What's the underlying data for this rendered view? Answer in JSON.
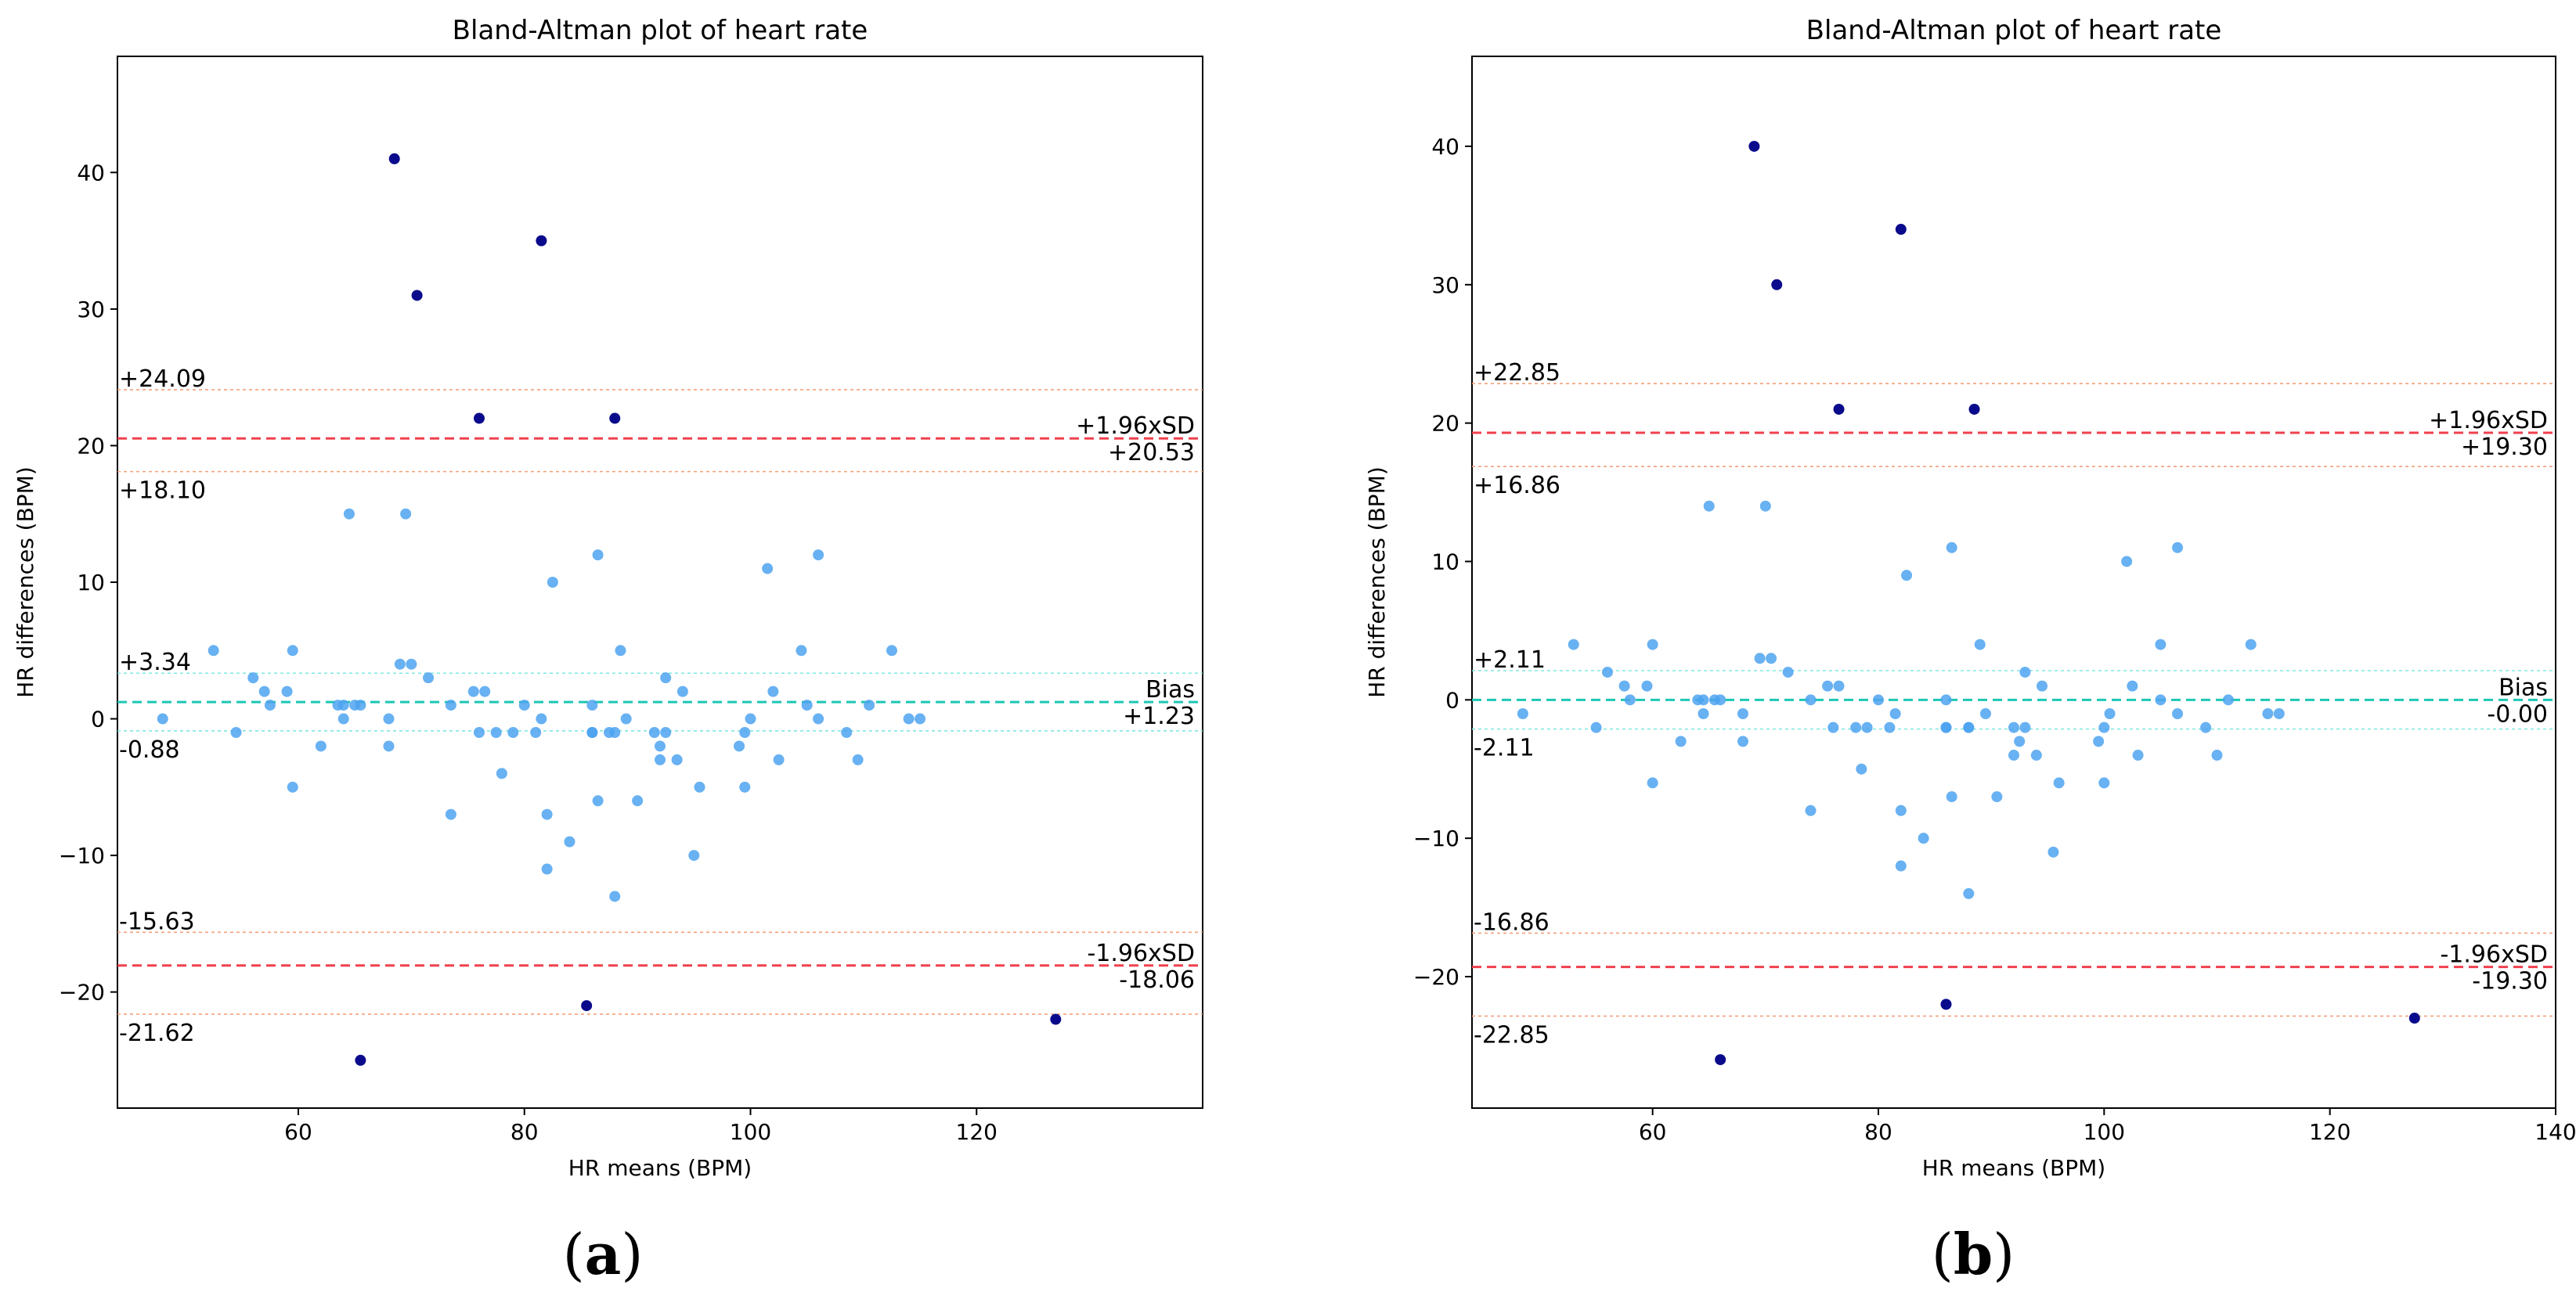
{
  "captions": [
    {
      "open": "(",
      "letter": "a",
      "close": ")"
    },
    {
      "open": "(",
      "letter": "b",
      "close": ")"
    }
  ],
  "colors": {
    "point": "#4da3f0",
    "outlier": "#0a0a8c",
    "sd": "#f0404e",
    "ci_sd": "#f4a07a",
    "bias": "#1cc7b4",
    "ci_bias": "#7ee8e0"
  },
  "chart_data": [
    {
      "type": "scatter",
      "title": "Bland-Altman plot of heart rate",
      "xlabel": "HR means (BPM)",
      "ylabel": "HR differences (BPM)",
      "xlim": [
        44,
        140
      ],
      "ylim": [
        -28.5,
        48.5
      ],
      "xticks": [
        60,
        80,
        100,
        120
      ],
      "yticks": [
        -20,
        -10,
        0,
        10,
        20,
        30,
        40
      ],
      "lines": {
        "upper_sd": {
          "value": 20.53,
          "label": "+1.96xSD",
          "value_label": "+20.53"
        },
        "upper_ci_high": {
          "value": 24.09,
          "label": "+24.09"
        },
        "upper_ci_low": {
          "value": 18.1,
          "label": "+18.10"
        },
        "bias": {
          "value": 1.23,
          "label": "Bias",
          "value_label": "+1.23"
        },
        "bias_ci_high": {
          "value": 3.34,
          "label": "+3.34"
        },
        "bias_ci_low": {
          "value": -0.88,
          "label": "-0.88"
        },
        "lower_sd": {
          "value": -18.06,
          "label": "-1.96xSD",
          "value_label": "-18.06"
        },
        "lower_ci_high": {
          "value": -15.63,
          "label": "-15.63"
        },
        "lower_ci_low": {
          "value": -21.62,
          "label": "-21.62"
        }
      },
      "points": [
        [
          48,
          0
        ],
        [
          52.5,
          5
        ],
        [
          54.5,
          -1
        ],
        [
          56,
          3
        ],
        [
          57,
          2
        ],
        [
          57.5,
          1
        ],
        [
          59,
          2
        ],
        [
          59.5,
          5
        ],
        [
          59.5,
          -5
        ],
        [
          62,
          -2
        ],
        [
          63.5,
          1
        ],
        [
          64,
          1
        ],
        [
          64,
          0
        ],
        [
          64.5,
          15
        ],
        [
          65,
          1
        ],
        [
          65.5,
          1
        ],
        [
          68,
          0
        ],
        [
          68,
          -2
        ],
        [
          69,
          4
        ],
        [
          69.5,
          15
        ],
        [
          70,
          4
        ],
        [
          71.5,
          3
        ],
        [
          73.5,
          1
        ],
        [
          73.5,
          -7
        ],
        [
          75.5,
          2
        ],
        [
          76,
          -1
        ],
        [
          76.5,
          2
        ],
        [
          77.5,
          -1
        ],
        [
          78,
          -4
        ],
        [
          79,
          -1
        ],
        [
          80,
          1
        ],
        [
          81,
          -1
        ],
        [
          81.5,
          0
        ],
        [
          82,
          -7
        ],
        [
          82,
          -11
        ],
        [
          82.5,
          10
        ],
        [
          84,
          -9
        ],
        [
          86,
          1
        ],
        [
          86,
          -1
        ],
        [
          86,
          -1
        ],
        [
          86.5,
          12
        ],
        [
          86.5,
          -6
        ],
        [
          87.5,
          -1
        ],
        [
          88,
          -1
        ],
        [
          88.5,
          5
        ],
        [
          89,
          0
        ],
        [
          88,
          -13
        ],
        [
          90,
          -6
        ],
        [
          91.5,
          -1
        ],
        [
          92,
          -2
        ],
        [
          92,
          -3
        ],
        [
          92.5,
          3
        ],
        [
          92.5,
          -1
        ],
        [
          93.5,
          -3
        ],
        [
          94,
          2
        ],
        [
          95,
          -10
        ],
        [
          95.5,
          -5
        ],
        [
          99,
          -2
        ],
        [
          99.5,
          -5
        ],
        [
          99.5,
          -1
        ],
        [
          100,
          0
        ],
        [
          101.5,
          11
        ],
        [
          102,
          2
        ],
        [
          102.5,
          -3
        ],
        [
          104.5,
          5
        ],
        [
          105,
          1
        ],
        [
          106,
          12
        ],
        [
          106,
          0
        ],
        [
          108.5,
          -1
        ],
        [
          109.5,
          -3
        ],
        [
          110.5,
          1
        ],
        [
          112.5,
          5
        ],
        [
          114,
          0
        ],
        [
          115,
          0
        ]
      ],
      "outliers": [
        [
          68.5,
          41
        ],
        [
          70.5,
          31
        ],
        [
          81.5,
          35
        ],
        [
          76,
          22
        ],
        [
          88,
          22
        ],
        [
          85.5,
          -21
        ],
        [
          65.5,
          -25
        ],
        [
          127,
          -22
        ]
      ]
    },
    {
      "type": "scatter",
      "title": "Bland-Altman plot of heart rate",
      "xlabel": "HR means (BPM)",
      "ylabel": "HR differences (BPM)",
      "xlim": [
        44,
        140
      ],
      "ylim": [
        -29.5,
        46.5
      ],
      "xticks": [
        60,
        80,
        100,
        120,
        140
      ],
      "yticks": [
        -20,
        -10,
        0,
        10,
        20,
        30,
        40
      ],
      "lines": {
        "upper_sd": {
          "value": 19.3,
          "label": "+1.96xSD",
          "value_label": "+19.30"
        },
        "upper_ci_high": {
          "value": 22.85,
          "label": "+22.85"
        },
        "upper_ci_low": {
          "value": 16.86,
          "label": "+16.86"
        },
        "bias": {
          "value": 0.0,
          "label": "Bias",
          "value_label": "-0.00"
        },
        "bias_ci_high": {
          "value": 2.11,
          "label": "+2.11"
        },
        "bias_ci_low": {
          "value": -2.11,
          "label": "-2.11"
        },
        "lower_sd": {
          "value": -19.3,
          "label": "-1.96xSD",
          "value_label": "-19.30"
        },
        "lower_ci_high": {
          "value": -16.86,
          "label": "-16.86"
        },
        "lower_ci_low": {
          "value": -22.85,
          "label": "-22.85"
        }
      },
      "points": [
        [
          48.5,
          -1
        ],
        [
          53,
          4
        ],
        [
          55,
          -2
        ],
        [
          56,
          2
        ],
        [
          57.5,
          1
        ],
        [
          58,
          0
        ],
        [
          59.5,
          1
        ],
        [
          60,
          4
        ],
        [
          60,
          -6
        ],
        [
          62.5,
          -3
        ],
        [
          64,
          0
        ],
        [
          64.5,
          0
        ],
        [
          64.5,
          -1
        ],
        [
          65,
          14
        ],
        [
          65.5,
          0
        ],
        [
          66,
          0
        ],
        [
          68,
          -1
        ],
        [
          68,
          -3
        ],
        [
          69.5,
          3
        ],
        [
          70,
          14
        ],
        [
          70.5,
          3
        ],
        [
          72,
          2
        ],
        [
          74,
          0
        ],
        [
          74,
          -8
        ],
        [
          75.5,
          1
        ],
        [
          76,
          -2
        ],
        [
          76.5,
          1
        ],
        [
          78,
          -2
        ],
        [
          78.5,
          -5
        ],
        [
          79,
          -2
        ],
        [
          80,
          0
        ],
        [
          81,
          -2
        ],
        [
          81.5,
          -1
        ],
        [
          82,
          -8
        ],
        [
          82,
          -12
        ],
        [
          82.5,
          9
        ],
        [
          84,
          -10
        ],
        [
          86,
          0
        ],
        [
          86,
          -2
        ],
        [
          86,
          -2
        ],
        [
          86.5,
          11
        ],
        [
          86.5,
          -7
        ],
        [
          88,
          -2
        ],
        [
          88,
          -2
        ],
        [
          89,
          4
        ],
        [
          89.5,
          -1
        ],
        [
          88,
          -14
        ],
        [
          90.5,
          -7
        ],
        [
          92,
          -2
        ],
        [
          92,
          -4
        ],
        [
          92.5,
          -3
        ],
        [
          93,
          2
        ],
        [
          93,
          -2
        ],
        [
          94,
          -4
        ],
        [
          94.5,
          1
        ],
        [
          95.5,
          -11
        ],
        [
          96,
          -6
        ],
        [
          99.5,
          -3
        ],
        [
          100,
          -6
        ],
        [
          100,
          -2
        ],
        [
          100.5,
          -1
        ],
        [
          102,
          10
        ],
        [
          102.5,
          1
        ],
        [
          103,
          -4
        ],
        [
          105,
          4
        ],
        [
          105,
          0
        ],
        [
          106.5,
          11
        ],
        [
          106.5,
          -1
        ],
        [
          109,
          -2
        ],
        [
          110,
          -4
        ],
        [
          111,
          0
        ],
        [
          113,
          4
        ],
        [
          114.5,
          -1
        ],
        [
          115.5,
          -1
        ]
      ],
      "outliers": [
        [
          69,
          40
        ],
        [
          71,
          30
        ],
        [
          82,
          34
        ],
        [
          76.5,
          21
        ],
        [
          88.5,
          21
        ],
        [
          86,
          -22
        ],
        [
          66,
          -26
        ],
        [
          127.5,
          -23
        ]
      ]
    }
  ]
}
